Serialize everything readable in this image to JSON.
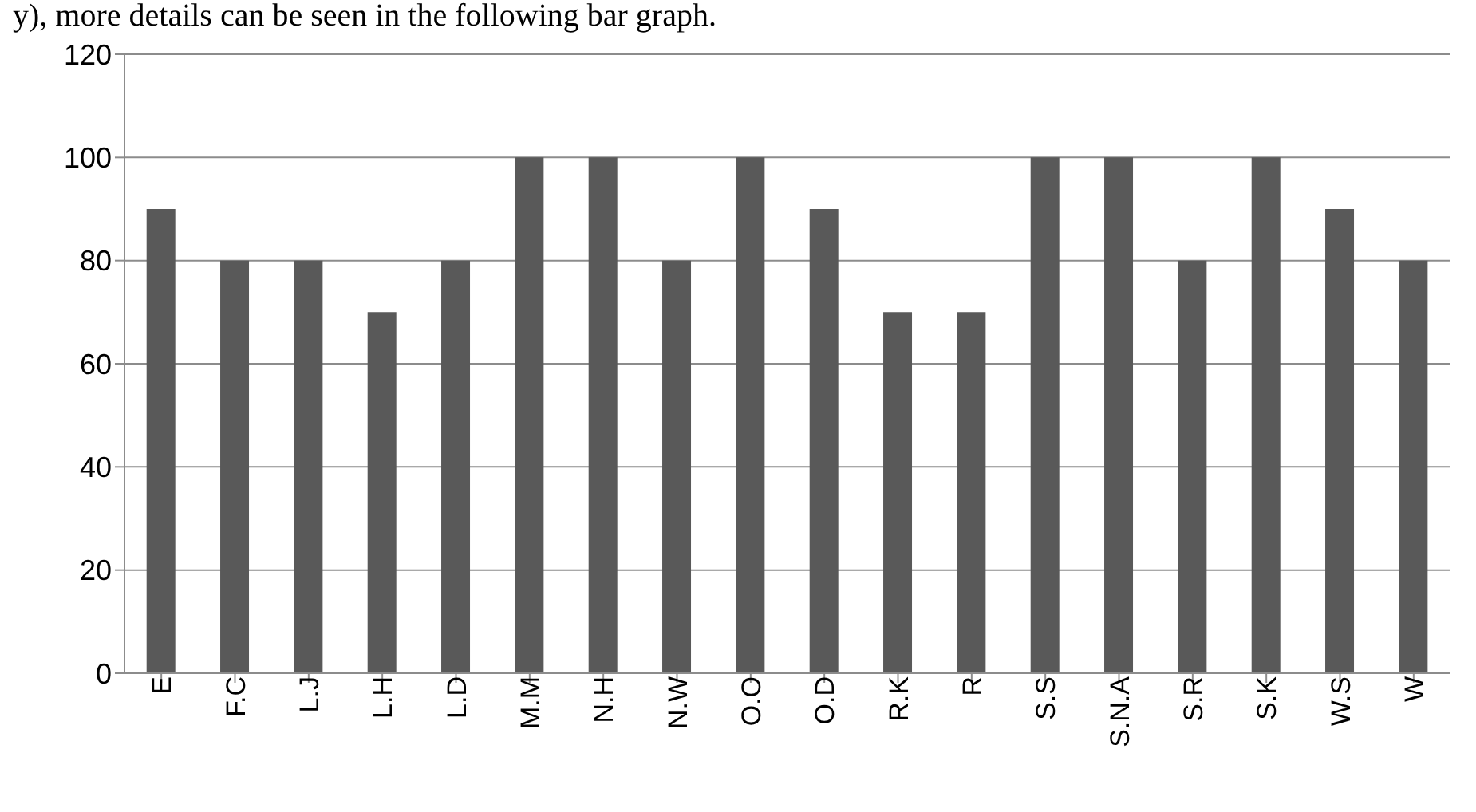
{
  "chart_data": {
    "type": "bar",
    "annotations": [
      "y), more details can be seen in the following bar graph."
    ],
    "categories": [
      "E",
      "F.C",
      "L.J",
      "L.H",
      "L.D",
      "M.M",
      "N.H",
      "N.W",
      "O.O",
      "O.D",
      "R.K",
      "R",
      "S.S",
      "S.N.A",
      "S.R",
      "S.K",
      "W.S",
      "W"
    ],
    "values": [
      90,
      80,
      80,
      70,
      80,
      100,
      100,
      80,
      100,
      90,
      70,
      70,
      100,
      100,
      80,
      100,
      90,
      80
    ],
    "color": "#595959",
    "ylim": [
      0,
      120
    ],
    "yticks": [
      0,
      20,
      40,
      60,
      80,
      100,
      120
    ],
    "grid": "y",
    "legend": false
  }
}
